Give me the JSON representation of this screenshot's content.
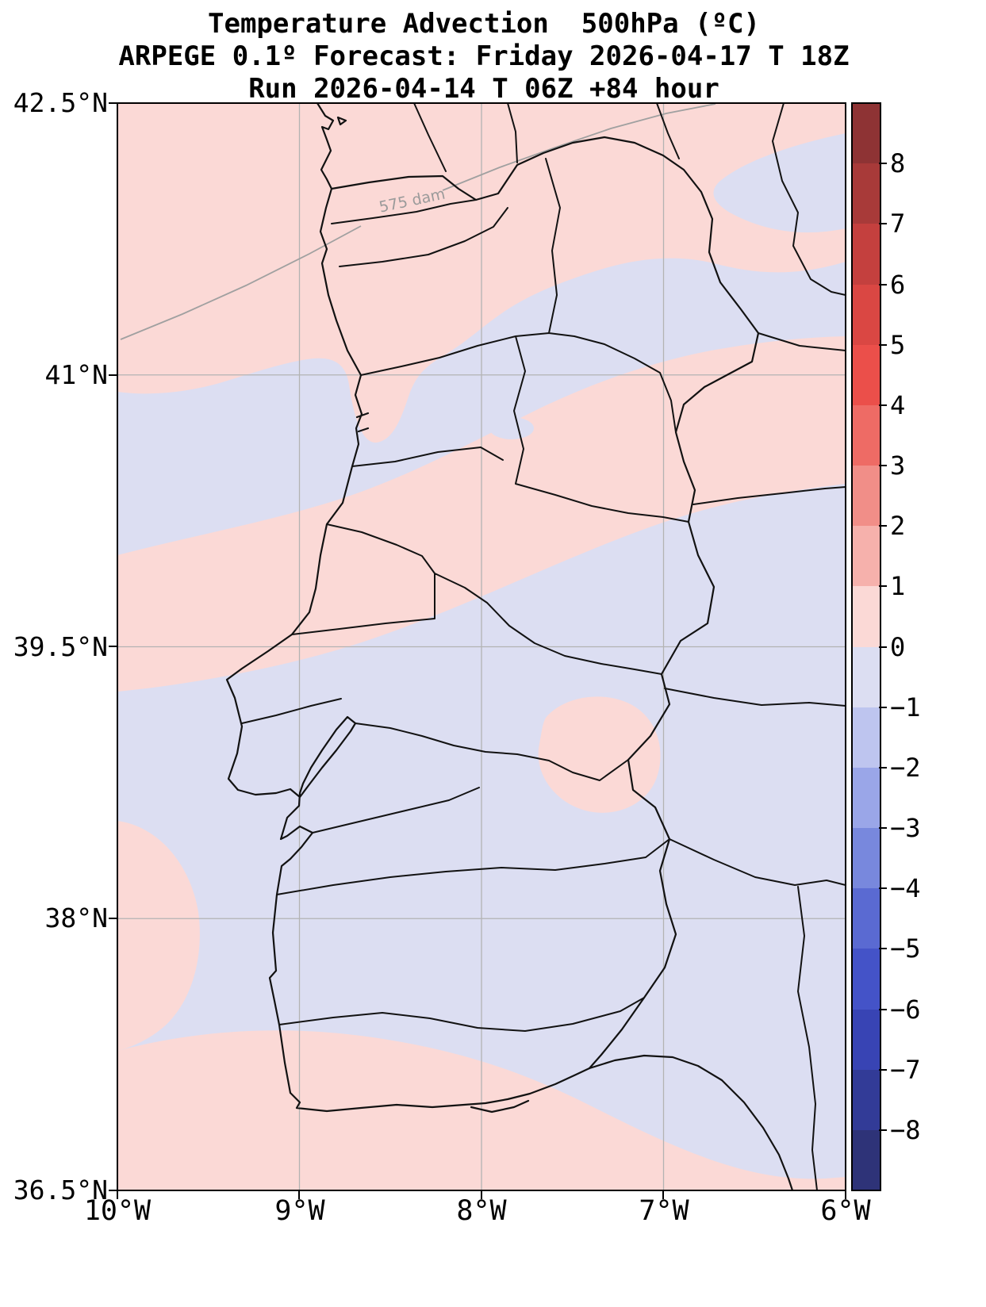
{
  "title": {
    "line1": "Temperature Advection  500hPa (ºC)",
    "line2": "ARPEGE 0.1º Forecast: Friday 2026-04-17 T 18Z",
    "line3": "Run 2026-04-14 T 06Z +84 hour"
  },
  "map": {
    "lat_ticks": [
      "42.5°N",
      "41°N",
      "39.5°N",
      "38°N",
      "36.5°N"
    ],
    "lon_ticks": [
      "10°W",
      "9°W",
      "8°W",
      "7°W",
      "6°W"
    ],
    "contour_label": "575 dam"
  },
  "colorbar": {
    "tick_labels": [
      "8",
      "7",
      "6",
      "5",
      "4",
      "3",
      "2",
      "1",
      "0",
      "−1",
      "−2",
      "−3",
      "−4",
      "−5",
      "−6",
      "−7",
      "−8"
    ],
    "band_colors": [
      "#8e3334",
      "#a83a39",
      "#c4403e",
      "#da4743",
      "#eb4f4a",
      "#ee6b65",
      "#f18e88",
      "#f6b1ac",
      "#fbd9d6",
      "#dcdef2",
      "#bec5ef",
      "#9aa6e8",
      "#7888dd",
      "#5a6ad2",
      "#4453c8",
      "#3844b4",
      "#323b97",
      "#2e3378"
    ]
  },
  "fills": {
    "positive_light": "#fbd9d6",
    "negative_light": "#dcdef2"
  },
  "line_colors": {
    "boundaries": "#121212",
    "grid": "#b3b3b3",
    "height_contour": "#a0a0a0"
  }
}
